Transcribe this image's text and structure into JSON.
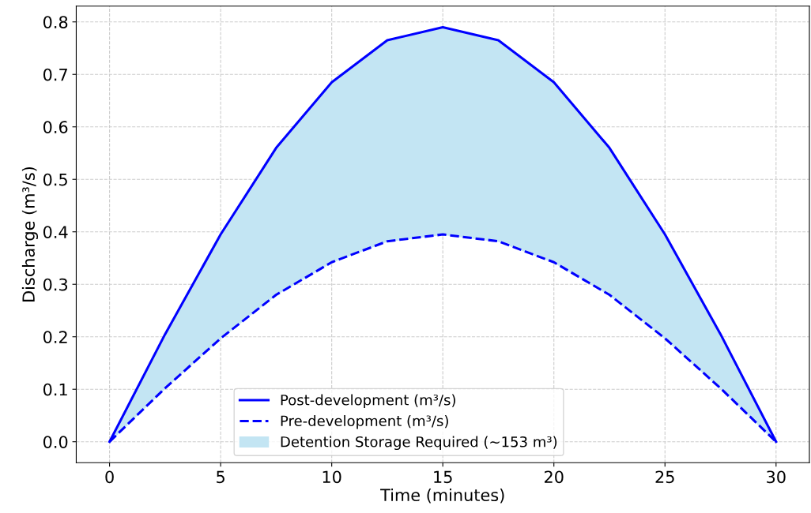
{
  "chart_data": {
    "type": "line",
    "xlabel": "Time (minutes)",
    "ylabel": "Discharge (m³/s)",
    "x": [
      0,
      2.5,
      5,
      7.5,
      10,
      12.5,
      15,
      17.5,
      20,
      22.5,
      25,
      27.5,
      30
    ],
    "series": [
      {
        "name": "Post-development (m³/s)",
        "color": "#0000ff",
        "line_style": "solid",
        "values": [
          0,
          0.205,
          0.395,
          0.56,
          0.685,
          0.765,
          0.79,
          0.765,
          0.685,
          0.56,
          0.395,
          0.205,
          0
        ]
      },
      {
        "name": "Pre-development (m³/s)",
        "color": "#0000ff",
        "line_style": "dashed",
        "values": [
          0,
          0.102,
          0.197,
          0.28,
          0.342,
          0.382,
          0.395,
          0.382,
          0.342,
          0.28,
          0.197,
          0.102,
          0
        ]
      },
      {
        "name": "Detention Storage Required (~153 m³)",
        "type": "area",
        "color": "#c3e5f3",
        "values": [
          null,
          null,
          null,
          null,
          null,
          null,
          null,
          null,
          null,
          null,
          null,
          null,
          null
        ],
        "lower": [
          0,
          0.102,
          0.197,
          0.28,
          0.342,
          0.382,
          0.395,
          0.382,
          0.342,
          0.28,
          0.197,
          0.102,
          0
        ],
        "upper": [
          0,
          0.205,
          0.395,
          0.56,
          0.685,
          0.765,
          0.79,
          0.765,
          0.685,
          0.56,
          0.395,
          0.205,
          0
        ]
      }
    ],
    "xlim": [
      -1.5,
      31.5
    ],
    "xticks": [
      0,
      5,
      10,
      15,
      20,
      25,
      30
    ],
    "ylim": [
      -0.04,
      0.83
    ],
    "yticks": [
      {
        "value": 0,
        "label": "0.0"
      },
      0.1,
      0.2,
      0.3,
      0.4,
      0.5,
      0.6,
      0.7,
      0.8
    ],
    "grid": true,
    "legend": "bottom"
  }
}
